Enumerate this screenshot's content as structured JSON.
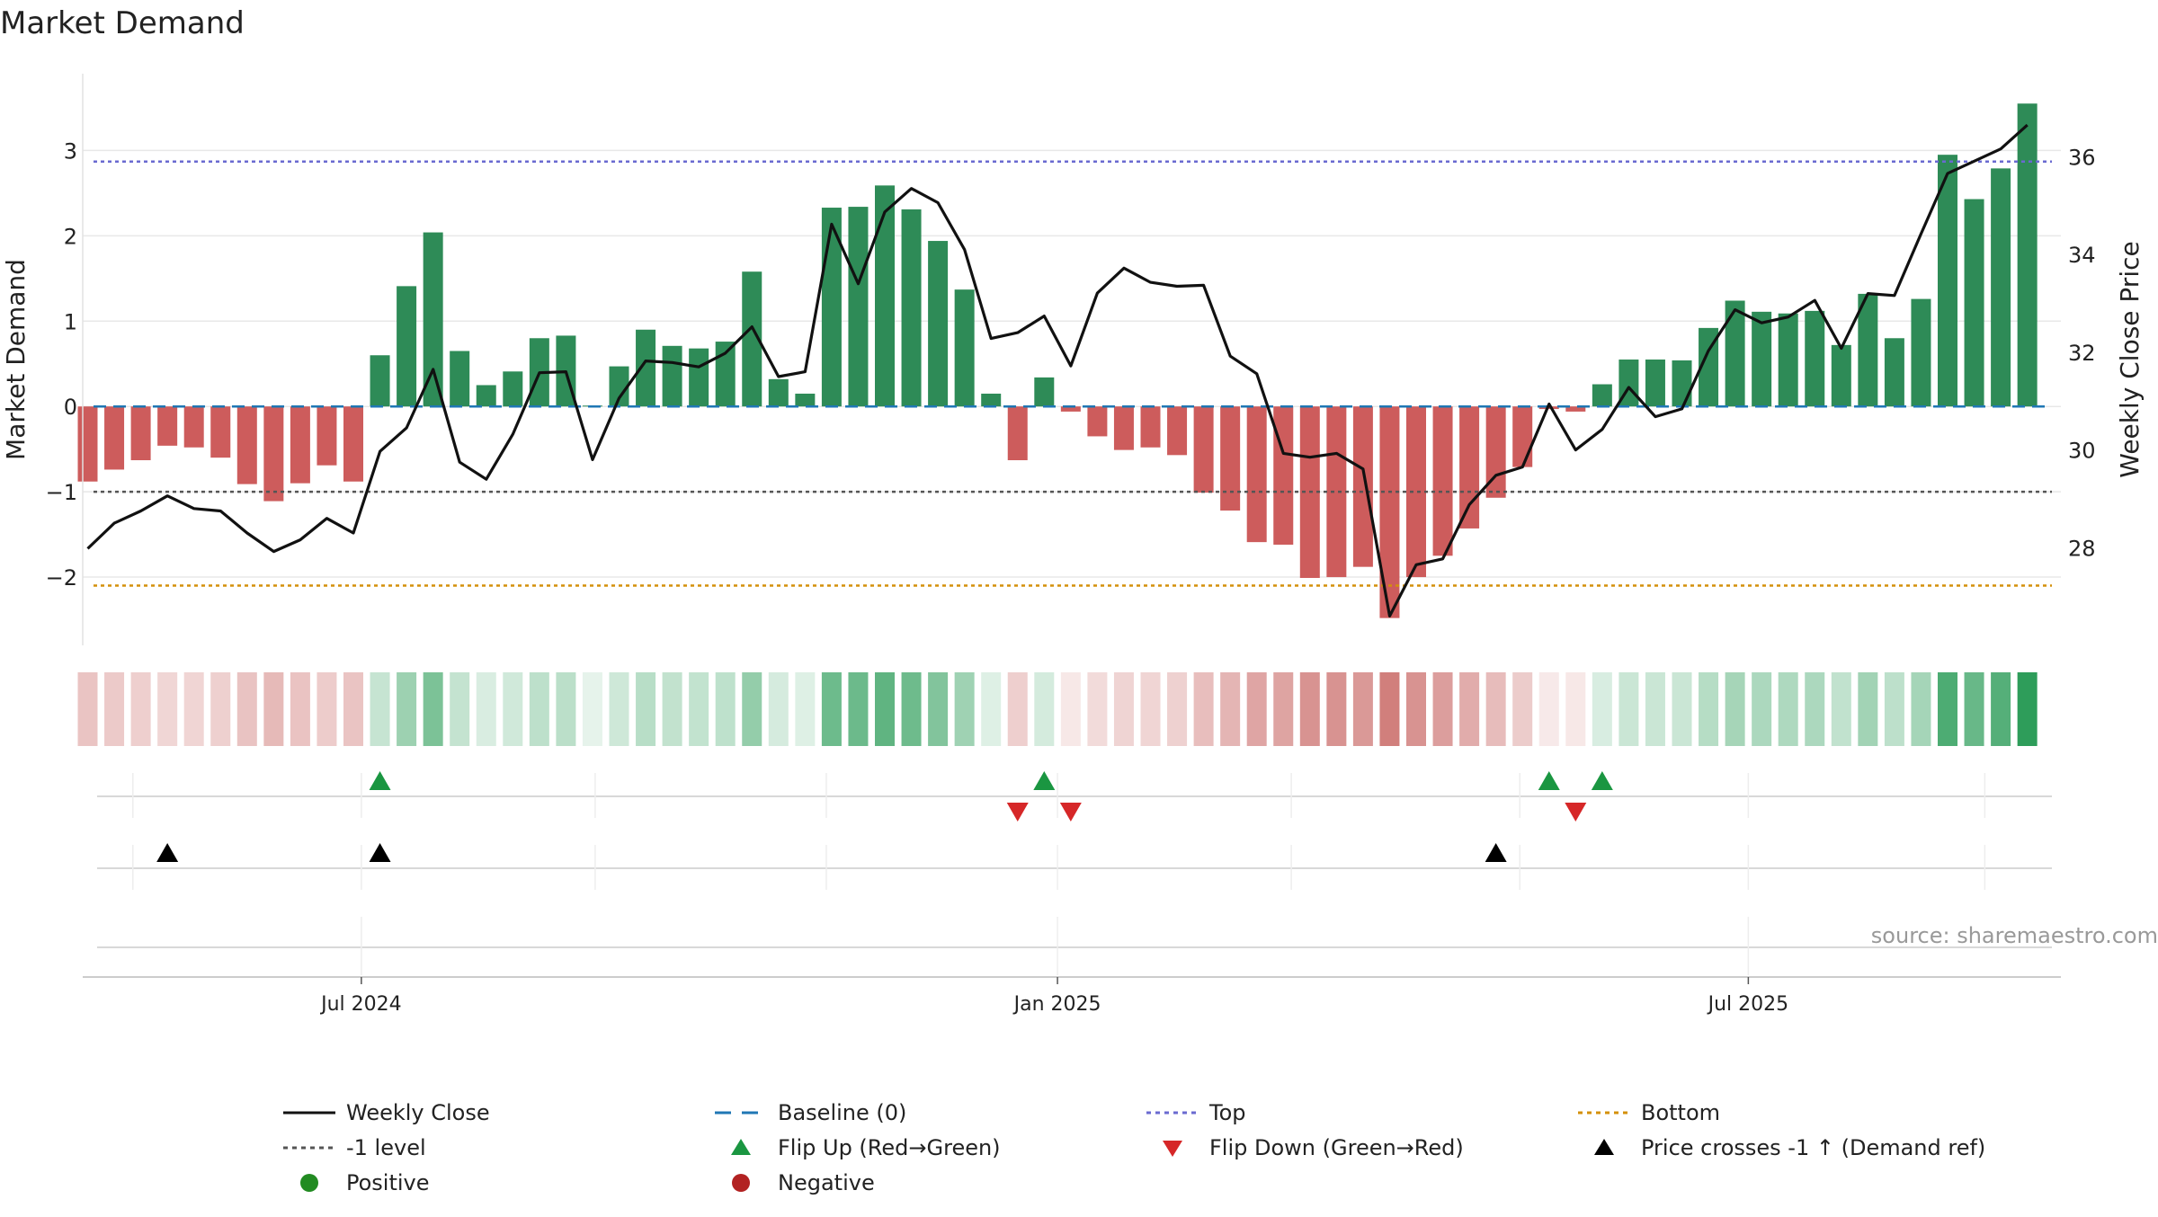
{
  "chart_data": {
    "type": "bar+line",
    "title": "Market Demand",
    "ylabel_left": "Market Demand",
    "ylabel_right": "Weekly Close Price",
    "source": "source: sharemaestro.com",
    "left_axis": {
      "ylim": [
        -2.8,
        3.9
      ],
      "ticks": [
        3,
        2,
        1,
        0,
        -1,
        -2
      ],
      "tick_labels": [
        "3",
        "2",
        "1",
        "0",
        "−1",
        "−2"
      ]
    },
    "right_axis": {
      "ylim": [
        26.0,
        37.7
      ],
      "ticks": [
        28,
        30,
        32,
        34,
        36
      ],
      "tick_labels": [
        "28",
        "30",
        "32",
        "34",
        "36"
      ]
    },
    "x_ticks": [
      {
        "label": "Jul 2024",
        "week": 10.3
      },
      {
        "label": "Jan 2025",
        "week": 36.5
      },
      {
        "label": "Jul 2025",
        "week": 62.5
      }
    ],
    "x_minor_weeks": [
      1.7,
      10.3,
      19.1,
      27.8,
      36.5,
      45.3,
      53.9,
      62.5,
      71.4
    ],
    "reference_lines": {
      "baseline": 0,
      "top": 2.87,
      "minus_one": -1,
      "bottom": -2.1
    },
    "demand": [
      -0.88,
      -0.74,
      -0.63,
      -0.46,
      -0.48,
      -0.6,
      -0.91,
      -1.11,
      -0.9,
      -0.69,
      -0.88,
      0.6,
      1.41,
      2.04,
      0.65,
      0.25,
      0.41,
      0.8,
      0.83,
      0.01,
      0.47,
      0.9,
      0.71,
      0.68,
      0.76,
      1.58,
      0.32,
      0.15,
      2.33,
      2.34,
      2.59,
      2.31,
      1.94,
      1.37,
      0.15,
      -0.63,
      0.34,
      -0.06,
      -0.35,
      -0.51,
      -0.48,
      -0.57,
      -1.01,
      -1.22,
      -1.59,
      -1.62,
      -2.01,
      -2.0,
      -1.88,
      -2.48,
      -2.0,
      -1.75,
      -1.43,
      -1.07,
      -0.71,
      -0.03,
      -0.06,
      0.26,
      0.55,
      0.55,
      0.54,
      0.92,
      1.24,
      1.11,
      1.09,
      1.12,
      0.72,
      1.32,
      0.8,
      1.26,
      2.95,
      2.43,
      2.79,
      3.55
    ],
    "close": [
      27.98,
      28.5,
      28.75,
      29.06,
      28.8,
      28.75,
      28.3,
      27.92,
      28.16,
      28.6,
      28.3,
      29.97,
      30.45,
      31.65,
      29.75,
      29.4,
      30.32,
      31.58,
      31.6,
      29.8,
      31.06,
      31.82,
      31.79,
      31.7,
      31.98,
      32.52,
      31.5,
      31.6,
      34.62,
      33.4,
      34.87,
      35.35,
      35.06,
      34.1,
      32.28,
      32.4,
      32.74,
      31.72,
      33.21,
      33.72,
      33.43,
      33.35,
      33.37,
      31.92,
      31.56,
      29.93,
      29.85,
      29.93,
      29.61,
      26.6,
      27.65,
      27.77,
      28.88,
      29.48,
      29.65,
      30.94,
      30.0,
      30.42,
      31.28,
      30.68,
      30.84,
      32.03,
      32.87,
      32.6,
      32.72,
      33.06,
      32.08,
      33.2,
      33.16,
      34.42,
      35.66,
      35.91,
      36.16,
      36.65
    ],
    "flip_up_weeks": [
      11,
      36,
      55,
      57
    ],
    "flip_down_weeks": [
      35,
      37,
      56
    ],
    "price_cross_weeks": [
      3,
      11,
      53
    ],
    "colors": {
      "positive_bar": "#2e8b57",
      "negative_bar": "#cd5c5c",
      "line": "#111111",
      "baseline": "#1f77b4",
      "top": "#6a6ad0",
      "minus_one": "#555555",
      "bottom": "#d4900a",
      "flip_up": "#1a9641",
      "flip_down": "#d62728",
      "cross": "#000000",
      "heat_pos": "#2e9d5a",
      "heat_neg": "#c0504d"
    },
    "legend": [
      {
        "label": "Weekly Close",
        "marker": "solid-line",
        "color": "#111111"
      },
      {
        "label": "Baseline (0)",
        "marker": "dashed-line",
        "color": "#1f77b4"
      },
      {
        "label": "Top",
        "marker": "dotted-line",
        "color": "#6a6ad0"
      },
      {
        "label": "Bottom",
        "marker": "dotted-line",
        "color": "#d4900a"
      },
      {
        "label": "-1 level",
        "marker": "dotted-line",
        "color": "#555555"
      },
      {
        "label": "Flip Up (Red→Green)",
        "marker": "triangle-up",
        "color": "#1a9641"
      },
      {
        "label": "Flip Down (Green→Red)",
        "marker": "triangle-down",
        "color": "#d62728"
      },
      {
        "label": "Price crosses -1 ↑ (Demand ref)",
        "marker": "triangle-up",
        "color": "#000000"
      },
      {
        "label": "Positive",
        "marker": "circle",
        "color": "#228b22"
      },
      {
        "label": "Negative",
        "marker": "circle",
        "color": "#b22222"
      }
    ]
  }
}
